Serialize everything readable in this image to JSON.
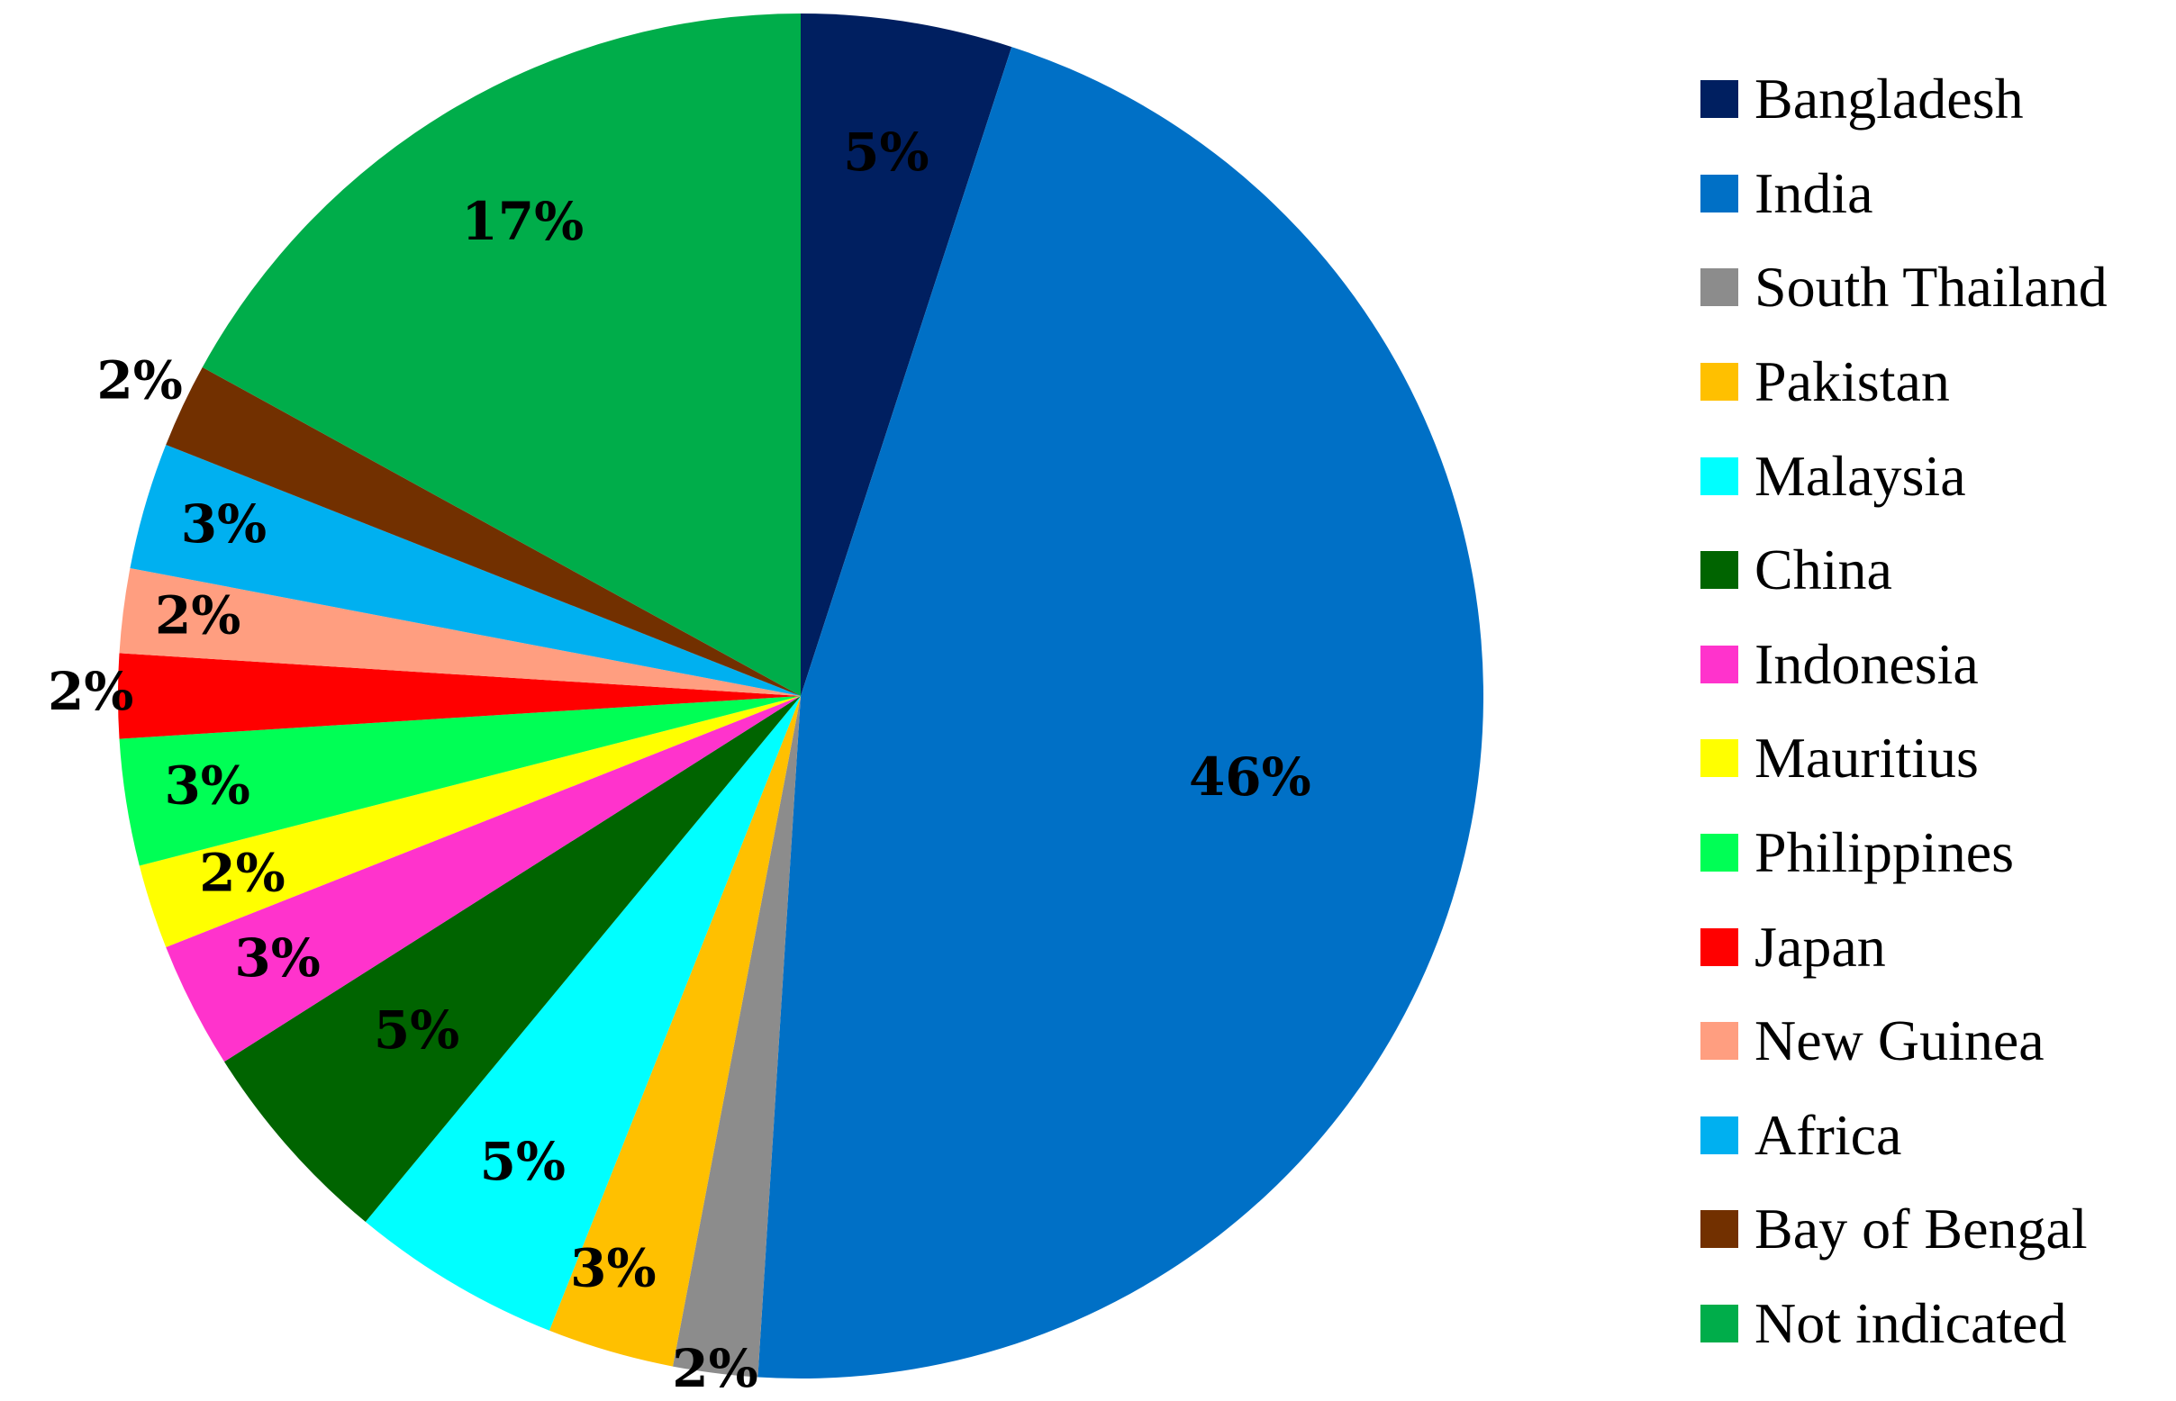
{
  "chart_data": {
    "type": "pie",
    "title": "",
    "start_angle_deg": 0,
    "direction": "clockwise",
    "legend_position": "right",
    "slices": [
      {
        "label": "Bangladesh",
        "value": 5,
        "value_label": "5%",
        "color": "#001F60"
      },
      {
        "label": "India",
        "value": 46,
        "value_label": "46%",
        "color": "#0070C6"
      },
      {
        "label": "South Thailand",
        "value": 2,
        "value_label": "2%",
        "color": "#8C8C8C"
      },
      {
        "label": "Pakistan",
        "value": 3,
        "value_label": "3%",
        "color": "#FFC000"
      },
      {
        "label": "Malaysia",
        "value": 5,
        "value_label": "5%",
        "color": "#00FFFF"
      },
      {
        "label": "China",
        "value": 5,
        "value_label": "5%",
        "color": "#006400"
      },
      {
        "label": "Indonesia",
        "value": 3,
        "value_label": "3%",
        "color": "#FF33CC"
      },
      {
        "label": "Mauritius",
        "value": 2,
        "value_label": "2%",
        "color": "#FFFF00"
      },
      {
        "label": "Philippines",
        "value": 3,
        "value_label": "3%",
        "color": "#00FF55"
      },
      {
        "label": "Japan",
        "value": 2,
        "value_label": "2%",
        "color": "#FF0000"
      },
      {
        "label": "New Guinea",
        "value": 2,
        "value_label": "2%",
        "color": "#FF9E80"
      },
      {
        "label": "Africa",
        "value": 3,
        "value_label": "3%",
        "color": "#00B0F0"
      },
      {
        "label": "Bay of Bengal",
        "value": 2,
        "value_label": "2%",
        "color": "#723000"
      },
      {
        "label": "Not indicated",
        "value": 17,
        "value_label": "17%",
        "color": "#00AD4A"
      }
    ]
  }
}
